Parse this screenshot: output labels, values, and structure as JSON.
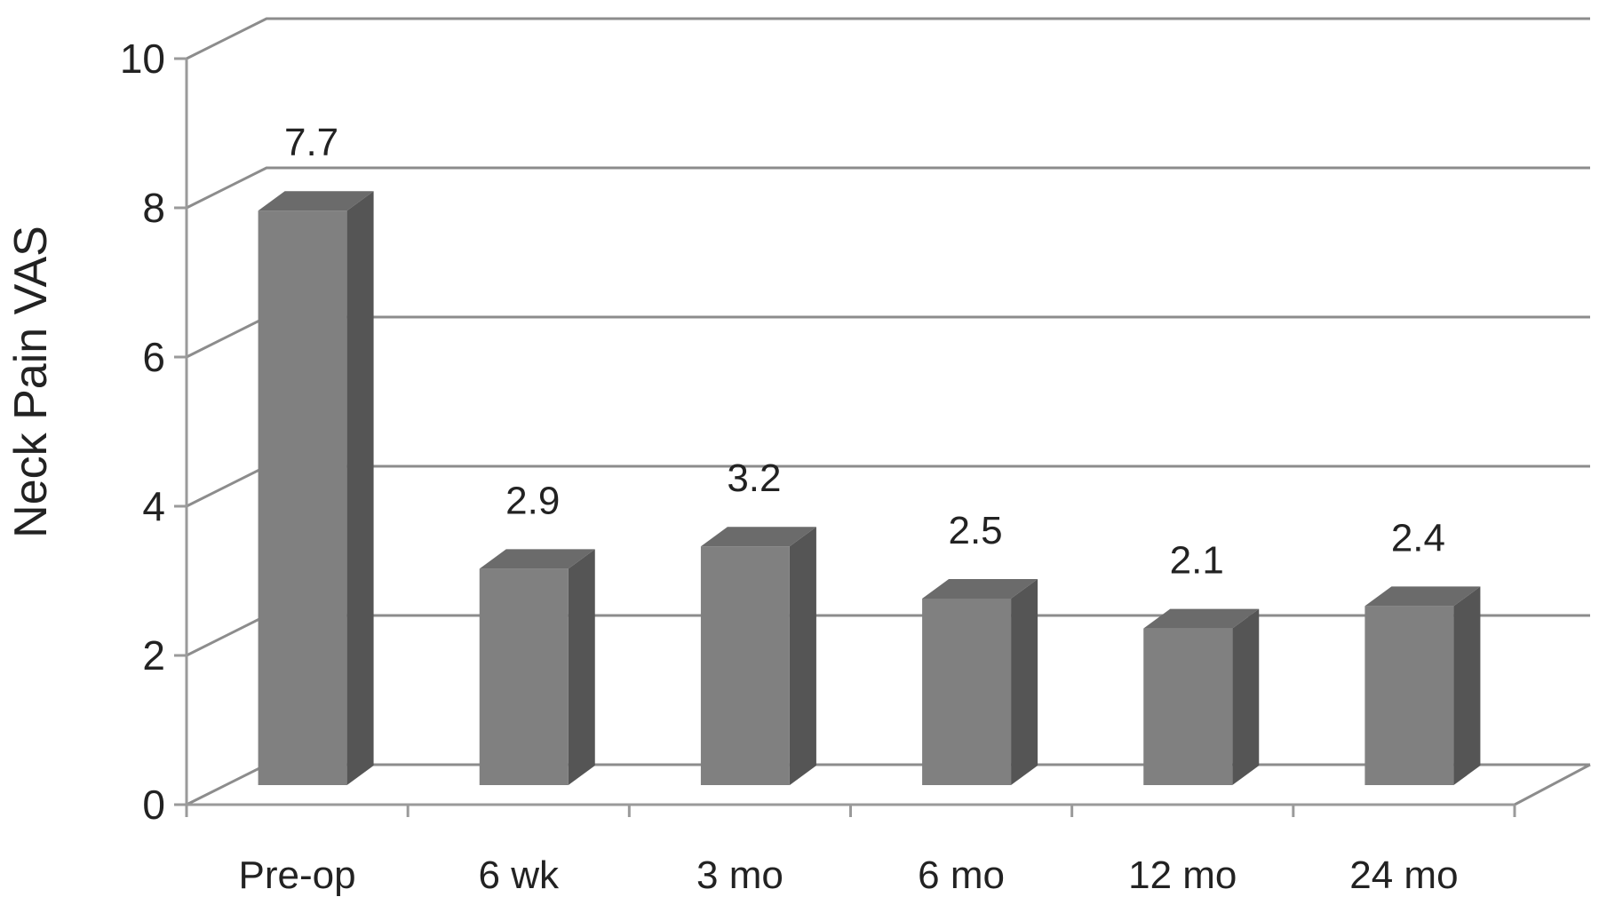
{
  "chart_data": {
    "type": "bar",
    "style": "3d-column",
    "categories": [
      "Pre-op",
      "6 wk",
      "3 mo",
      "6 mo",
      "12 mo",
      "24 mo"
    ],
    "values": [
      7.7,
      2.9,
      3.2,
      2.5,
      2.1,
      2.4
    ],
    "data_labels": [
      "7.7",
      "2.9",
      "3.2",
      "2.5",
      "2.1",
      "2.4"
    ],
    "ylabel": "Neck Pain VAS",
    "xlabel": "",
    "ylim": [
      0,
      10
    ],
    "yticks": [
      "0",
      "2",
      "4",
      "6",
      "8",
      "10"
    ],
    "grid": true,
    "legend": "none",
    "colors": {
      "bar_front": "#808080",
      "bar_side": "#555555",
      "bar_top": "#6b6b6b",
      "grid": "#8c8c8c",
      "axis": "#9a9a9a",
      "text": "#222222"
    }
  }
}
